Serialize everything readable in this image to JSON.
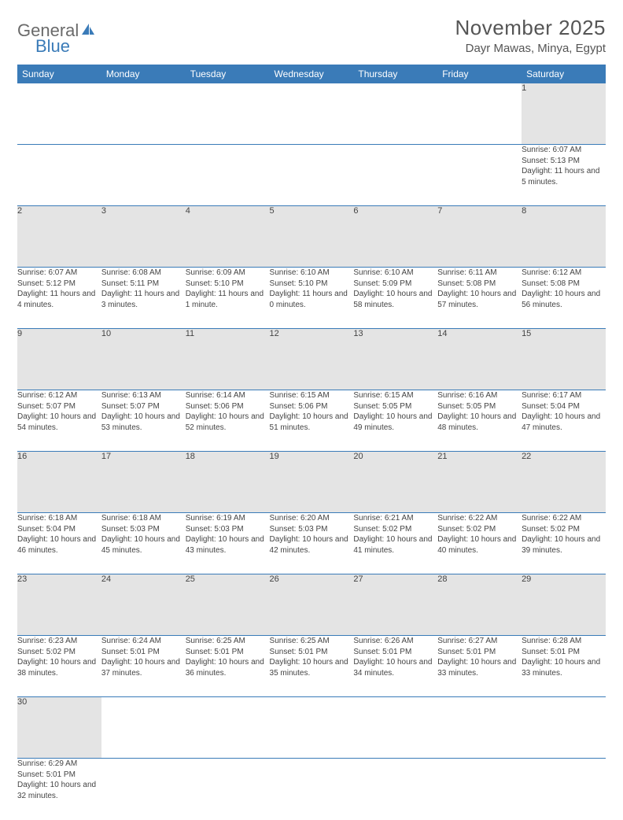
{
  "logo": {
    "text1": "General",
    "text2": "Blue"
  },
  "title": "November 2025",
  "location": "Dayr Mawas, Minya, Egypt",
  "colors": {
    "header_bg": "#3a7bb8",
    "header_fg": "#ffffff",
    "daynum_bg": "#e4e4e4",
    "border": "#3a7bb8",
    "text": "#444444",
    "page_bg": "#ffffff"
  },
  "weekdays": [
    "Sunday",
    "Monday",
    "Tuesday",
    "Wednesday",
    "Thursday",
    "Friday",
    "Saturday"
  ],
  "weeks": [
    [
      null,
      null,
      null,
      null,
      null,
      null,
      {
        "n": "1",
        "sr": "Sunrise: 6:07 AM",
        "ss": "Sunset: 5:13 PM",
        "dl": "Daylight: 11 hours and 5 minutes."
      }
    ],
    [
      {
        "n": "2",
        "sr": "Sunrise: 6:07 AM",
        "ss": "Sunset: 5:12 PM",
        "dl": "Daylight: 11 hours and 4 minutes."
      },
      {
        "n": "3",
        "sr": "Sunrise: 6:08 AM",
        "ss": "Sunset: 5:11 PM",
        "dl": "Daylight: 11 hours and 3 minutes."
      },
      {
        "n": "4",
        "sr": "Sunrise: 6:09 AM",
        "ss": "Sunset: 5:10 PM",
        "dl": "Daylight: 11 hours and 1 minute."
      },
      {
        "n": "5",
        "sr": "Sunrise: 6:10 AM",
        "ss": "Sunset: 5:10 PM",
        "dl": "Daylight: 11 hours and 0 minutes."
      },
      {
        "n": "6",
        "sr": "Sunrise: 6:10 AM",
        "ss": "Sunset: 5:09 PM",
        "dl": "Daylight: 10 hours and 58 minutes."
      },
      {
        "n": "7",
        "sr": "Sunrise: 6:11 AM",
        "ss": "Sunset: 5:08 PM",
        "dl": "Daylight: 10 hours and 57 minutes."
      },
      {
        "n": "8",
        "sr": "Sunrise: 6:12 AM",
        "ss": "Sunset: 5:08 PM",
        "dl": "Daylight: 10 hours and 56 minutes."
      }
    ],
    [
      {
        "n": "9",
        "sr": "Sunrise: 6:12 AM",
        "ss": "Sunset: 5:07 PM",
        "dl": "Daylight: 10 hours and 54 minutes."
      },
      {
        "n": "10",
        "sr": "Sunrise: 6:13 AM",
        "ss": "Sunset: 5:07 PM",
        "dl": "Daylight: 10 hours and 53 minutes."
      },
      {
        "n": "11",
        "sr": "Sunrise: 6:14 AM",
        "ss": "Sunset: 5:06 PM",
        "dl": "Daylight: 10 hours and 52 minutes."
      },
      {
        "n": "12",
        "sr": "Sunrise: 6:15 AM",
        "ss": "Sunset: 5:06 PM",
        "dl": "Daylight: 10 hours and 51 minutes."
      },
      {
        "n": "13",
        "sr": "Sunrise: 6:15 AM",
        "ss": "Sunset: 5:05 PM",
        "dl": "Daylight: 10 hours and 49 minutes."
      },
      {
        "n": "14",
        "sr": "Sunrise: 6:16 AM",
        "ss": "Sunset: 5:05 PM",
        "dl": "Daylight: 10 hours and 48 minutes."
      },
      {
        "n": "15",
        "sr": "Sunrise: 6:17 AM",
        "ss": "Sunset: 5:04 PM",
        "dl": "Daylight: 10 hours and 47 minutes."
      }
    ],
    [
      {
        "n": "16",
        "sr": "Sunrise: 6:18 AM",
        "ss": "Sunset: 5:04 PM",
        "dl": "Daylight: 10 hours and 46 minutes."
      },
      {
        "n": "17",
        "sr": "Sunrise: 6:18 AM",
        "ss": "Sunset: 5:03 PM",
        "dl": "Daylight: 10 hours and 45 minutes."
      },
      {
        "n": "18",
        "sr": "Sunrise: 6:19 AM",
        "ss": "Sunset: 5:03 PM",
        "dl": "Daylight: 10 hours and 43 minutes."
      },
      {
        "n": "19",
        "sr": "Sunrise: 6:20 AM",
        "ss": "Sunset: 5:03 PM",
        "dl": "Daylight: 10 hours and 42 minutes."
      },
      {
        "n": "20",
        "sr": "Sunrise: 6:21 AM",
        "ss": "Sunset: 5:02 PM",
        "dl": "Daylight: 10 hours and 41 minutes."
      },
      {
        "n": "21",
        "sr": "Sunrise: 6:22 AM",
        "ss": "Sunset: 5:02 PM",
        "dl": "Daylight: 10 hours and 40 minutes."
      },
      {
        "n": "22",
        "sr": "Sunrise: 6:22 AM",
        "ss": "Sunset: 5:02 PM",
        "dl": "Daylight: 10 hours and 39 minutes."
      }
    ],
    [
      {
        "n": "23",
        "sr": "Sunrise: 6:23 AM",
        "ss": "Sunset: 5:02 PM",
        "dl": "Daylight: 10 hours and 38 minutes."
      },
      {
        "n": "24",
        "sr": "Sunrise: 6:24 AM",
        "ss": "Sunset: 5:01 PM",
        "dl": "Daylight: 10 hours and 37 minutes."
      },
      {
        "n": "25",
        "sr": "Sunrise: 6:25 AM",
        "ss": "Sunset: 5:01 PM",
        "dl": "Daylight: 10 hours and 36 minutes."
      },
      {
        "n": "26",
        "sr": "Sunrise: 6:25 AM",
        "ss": "Sunset: 5:01 PM",
        "dl": "Daylight: 10 hours and 35 minutes."
      },
      {
        "n": "27",
        "sr": "Sunrise: 6:26 AM",
        "ss": "Sunset: 5:01 PM",
        "dl": "Daylight: 10 hours and 34 minutes."
      },
      {
        "n": "28",
        "sr": "Sunrise: 6:27 AM",
        "ss": "Sunset: 5:01 PM",
        "dl": "Daylight: 10 hours and 33 minutes."
      },
      {
        "n": "29",
        "sr": "Sunrise: 6:28 AM",
        "ss": "Sunset: 5:01 PM",
        "dl": "Daylight: 10 hours and 33 minutes."
      }
    ],
    [
      {
        "n": "30",
        "sr": "Sunrise: 6:29 AM",
        "ss": "Sunset: 5:01 PM",
        "dl": "Daylight: 10 hours and 32 minutes."
      },
      null,
      null,
      null,
      null,
      null,
      null
    ]
  ]
}
